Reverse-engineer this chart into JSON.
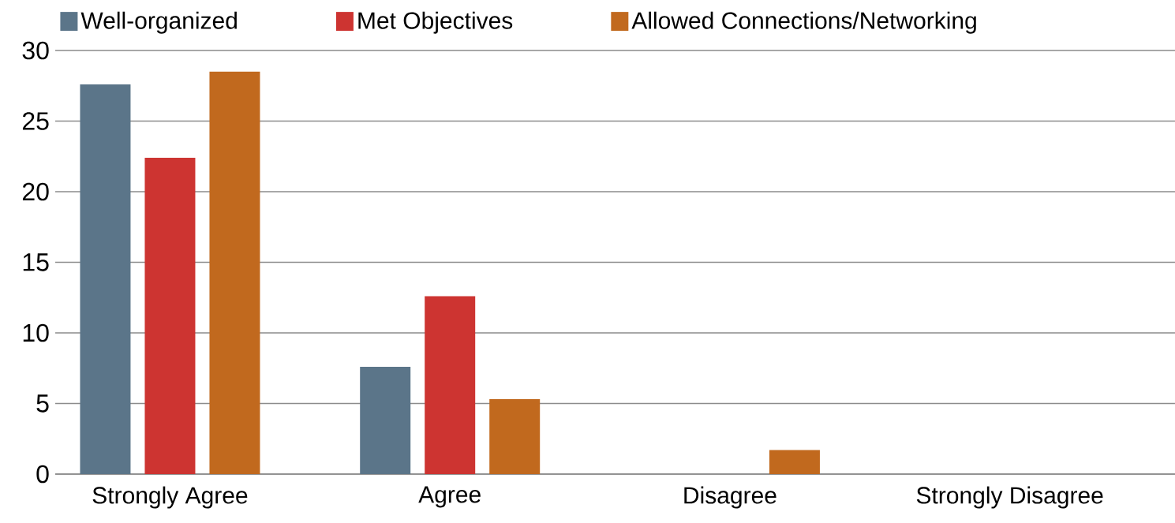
{
  "chart_data": {
    "type": "bar",
    "categories": [
      "Strongly Agree",
      "Agree",
      "Disagree",
      "Strongly Disagree"
    ],
    "series": [
      {
        "name": "Well-organized",
        "color": "#5b7589",
        "values": [
          27.6,
          7.6,
          0,
          0
        ]
      },
      {
        "name": "Met Objectives",
        "color": "#cd3431",
        "values": [
          22.4,
          12.6,
          0,
          0
        ]
      },
      {
        "name": "Allowed Connections/Networking",
        "color": "#c1691e",
        "values": [
          28.5,
          5.3,
          1.7,
          0
        ]
      }
    ],
    "ylim": [
      0,
      30
    ],
    "yticks": [
      0,
      5,
      10,
      15,
      20,
      25,
      30
    ],
    "grid": "y",
    "legend": "top"
  }
}
